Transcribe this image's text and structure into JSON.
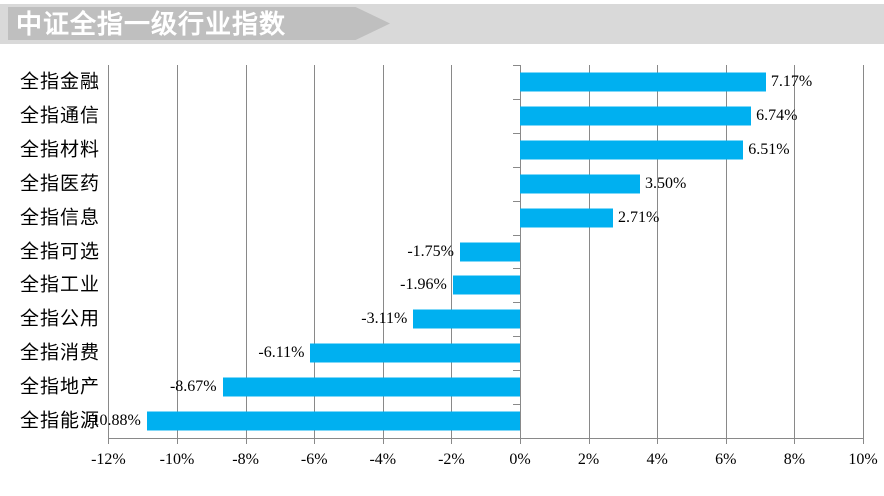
{
  "header": {
    "title": "中证全指一级行业指数"
  },
  "chart_data": {
    "type": "bar",
    "orientation": "horizontal",
    "title": "中证全指一级行业指数",
    "categories": [
      "全指金融",
      "全指通信",
      "全指材料",
      "全指医药",
      "全指信息",
      "全指可选",
      "全指工业",
      "全指公用",
      "全指消费",
      "全指地产",
      "全指能源"
    ],
    "values": [
      7.17,
      6.74,
      6.51,
      3.5,
      2.71,
      -1.75,
      -1.96,
      -3.11,
      -6.11,
      -8.67,
      -10.88
    ],
    "value_labels": [
      "7.17%",
      "6.74%",
      "6.51%",
      "3.50%",
      "2.71%",
      "-1.75%",
      "-1.96%",
      "-3.11%",
      "-6.11%",
      "-8.67%",
      "-10.88%"
    ],
    "xlabel": "",
    "ylabel": "",
    "xlim": [
      -12,
      10
    ],
    "xtick_values": [
      -12,
      -10,
      -8,
      -6,
      -4,
      -2,
      0,
      2,
      4,
      6,
      8,
      10
    ],
    "xtick_labels": [
      "-12%",
      "-10%",
      "-8%",
      "-6%",
      "-4%",
      "-2%",
      "0%",
      "2%",
      "4%",
      "6%",
      "8%",
      "10%"
    ],
    "grid": "vertical-on",
    "legend": "none"
  },
  "colors": {
    "bar": "#00b0f0",
    "grid": "#898989",
    "axis": "#898989",
    "banner_light": "#d9d9d9",
    "banner_dark": "#bfbfbf",
    "title_text": "#ffffff",
    "label_text": "#000000"
  }
}
